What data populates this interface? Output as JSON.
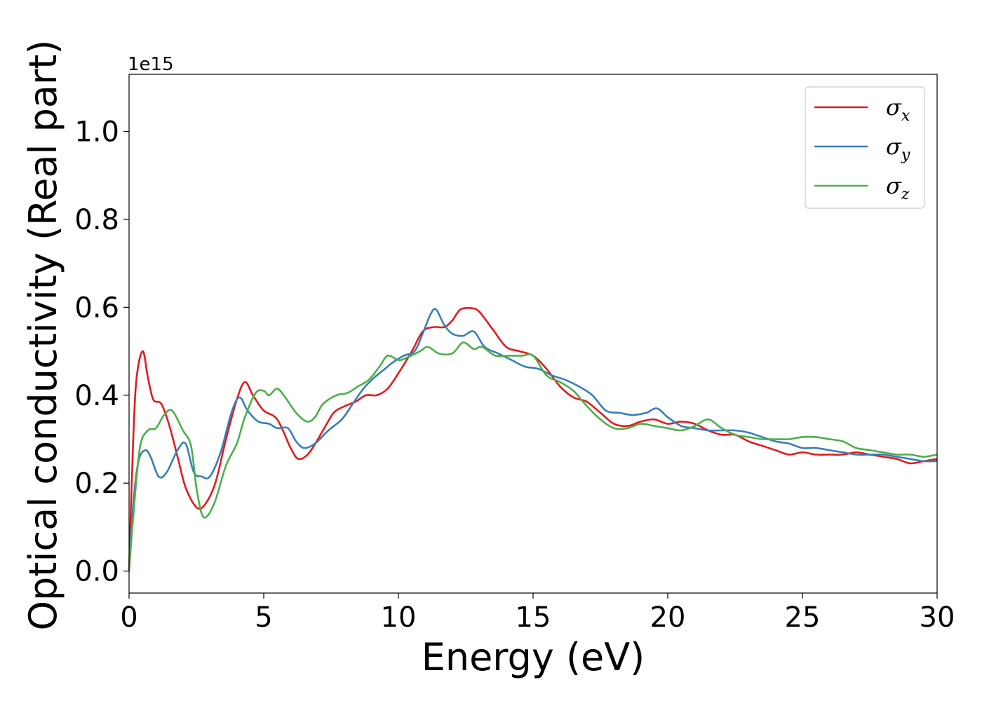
{
  "chart_data": {
    "type": "line",
    "title": "",
    "xlabel": "Energy (eV)",
    "ylabel": "Optical conductivity (Real part)",
    "y_offset_text": "1e15",
    "xlim": [
      0,
      30
    ],
    "ylim": [
      -0.05,
      1.13
    ],
    "y_scale_factor": 1000000000000000.0,
    "xticks": [
      0,
      5,
      10,
      15,
      20,
      25,
      30
    ],
    "xtick_labels": [
      "0",
      "5",
      "10",
      "15",
      "20",
      "25",
      "30"
    ],
    "yticks": [
      0.0,
      0.2,
      0.4,
      0.6,
      0.8,
      1.0
    ],
    "ytick_labels": [
      "0.0",
      "0.2",
      "0.4",
      "0.6",
      "0.8",
      "1.0"
    ],
    "grid": false,
    "legend_position": "top-right",
    "series": [
      {
        "name": "σx",
        "symbol": "σ",
        "subscript": "x",
        "color": "#e41a1c",
        "points": [
          [
            0,
            0
          ],
          [
            0.1,
            0.2
          ],
          [
            0.25,
            0.42
          ],
          [
            0.5,
            0.5
          ],
          [
            0.7,
            0.44
          ],
          [
            0.9,
            0.39
          ],
          [
            1.2,
            0.38
          ],
          [
            1.5,
            0.33
          ],
          [
            1.8,
            0.26
          ],
          [
            2.1,
            0.19
          ],
          [
            2.5,
            0.145
          ],
          [
            2.8,
            0.15
          ],
          [
            3.2,
            0.2
          ],
          [
            3.6,
            0.3
          ],
          [
            4.0,
            0.39
          ],
          [
            4.3,
            0.43
          ],
          [
            4.6,
            0.4
          ],
          [
            5.0,
            0.365
          ],
          [
            5.5,
            0.345
          ],
          [
            6.0,
            0.28
          ],
          [
            6.3,
            0.255
          ],
          [
            6.7,
            0.27
          ],
          [
            7.2,
            0.32
          ],
          [
            7.6,
            0.36
          ],
          [
            8.0,
            0.375
          ],
          [
            8.4,
            0.385
          ],
          [
            8.8,
            0.4
          ],
          [
            9.2,
            0.4
          ],
          [
            9.6,
            0.415
          ],
          [
            10.0,
            0.45
          ],
          [
            10.5,
            0.5
          ],
          [
            10.9,
            0.545
          ],
          [
            11.3,
            0.555
          ],
          [
            11.7,
            0.555
          ],
          [
            12.0,
            0.57
          ],
          [
            12.3,
            0.595
          ],
          [
            12.7,
            0.598
          ],
          [
            13.0,
            0.59
          ],
          [
            13.5,
            0.55
          ],
          [
            14.0,
            0.51
          ],
          [
            14.5,
            0.5
          ],
          [
            15.0,
            0.49
          ],
          [
            15.5,
            0.46
          ],
          [
            16.0,
            0.42
          ],
          [
            16.5,
            0.395
          ],
          [
            17.0,
            0.385
          ],
          [
            17.5,
            0.36
          ],
          [
            18.0,
            0.335
          ],
          [
            18.5,
            0.33
          ],
          [
            19.0,
            0.34
          ],
          [
            19.5,
            0.345
          ],
          [
            20.0,
            0.335
          ],
          [
            20.5,
            0.34
          ],
          [
            21.0,
            0.335
          ],
          [
            21.5,
            0.32
          ],
          [
            22.0,
            0.31
          ],
          [
            22.5,
            0.31
          ],
          [
            23.0,
            0.295
          ],
          [
            23.5,
            0.285
          ],
          [
            24.0,
            0.275
          ],
          [
            24.5,
            0.265
          ],
          [
            25.0,
            0.27
          ],
          [
            25.5,
            0.265
          ],
          [
            26.0,
            0.265
          ],
          [
            26.5,
            0.265
          ],
          [
            27.0,
            0.27
          ],
          [
            27.5,
            0.265
          ],
          [
            28.0,
            0.26
          ],
          [
            28.5,
            0.255
          ],
          [
            29.0,
            0.245
          ],
          [
            29.5,
            0.25
          ],
          [
            30.0,
            0.255
          ]
        ]
      },
      {
        "name": "σy",
        "symbol": "σ",
        "subscript": "y",
        "color": "#377eb8",
        "points": [
          [
            0,
            0
          ],
          [
            0.15,
            0.15
          ],
          [
            0.35,
            0.25
          ],
          [
            0.6,
            0.275
          ],
          [
            0.8,
            0.26
          ],
          [
            1.1,
            0.215
          ],
          [
            1.4,
            0.225
          ],
          [
            1.8,
            0.275
          ],
          [
            2.1,
            0.29
          ],
          [
            2.4,
            0.225
          ],
          [
            2.7,
            0.215
          ],
          [
            3.0,
            0.215
          ],
          [
            3.4,
            0.27
          ],
          [
            3.8,
            0.36
          ],
          [
            4.1,
            0.395
          ],
          [
            4.4,
            0.365
          ],
          [
            4.8,
            0.34
          ],
          [
            5.2,
            0.335
          ],
          [
            5.5,
            0.325
          ],
          [
            5.9,
            0.325
          ],
          [
            6.2,
            0.295
          ],
          [
            6.5,
            0.28
          ],
          [
            6.9,
            0.29
          ],
          [
            7.4,
            0.32
          ],
          [
            7.9,
            0.345
          ],
          [
            8.3,
            0.38
          ],
          [
            8.7,
            0.415
          ],
          [
            9.1,
            0.44
          ],
          [
            9.5,
            0.46
          ],
          [
            9.8,
            0.475
          ],
          [
            10.2,
            0.49
          ],
          [
            10.6,
            0.5
          ],
          [
            10.9,
            0.54
          ],
          [
            11.2,
            0.585
          ],
          [
            11.4,
            0.595
          ],
          [
            11.7,
            0.56
          ],
          [
            12.0,
            0.54
          ],
          [
            12.4,
            0.535
          ],
          [
            12.8,
            0.545
          ],
          [
            13.2,
            0.51
          ],
          [
            13.7,
            0.495
          ],
          [
            14.2,
            0.48
          ],
          [
            14.7,
            0.465
          ],
          [
            15.2,
            0.46
          ],
          [
            15.7,
            0.445
          ],
          [
            16.2,
            0.435
          ],
          [
            16.7,
            0.42
          ],
          [
            17.2,
            0.4
          ],
          [
            17.7,
            0.365
          ],
          [
            18.2,
            0.36
          ],
          [
            18.7,
            0.355
          ],
          [
            19.2,
            0.36
          ],
          [
            19.6,
            0.37
          ],
          [
            20.0,
            0.35
          ],
          [
            20.5,
            0.33
          ],
          [
            21.0,
            0.325
          ],
          [
            21.5,
            0.32
          ],
          [
            22.0,
            0.32
          ],
          [
            22.5,
            0.32
          ],
          [
            23.0,
            0.315
          ],
          [
            23.5,
            0.305
          ],
          [
            24.0,
            0.295
          ],
          [
            24.5,
            0.29
          ],
          [
            25.0,
            0.28
          ],
          [
            25.5,
            0.28
          ],
          [
            26.0,
            0.275
          ],
          [
            26.5,
            0.27
          ],
          [
            27.0,
            0.265
          ],
          [
            27.5,
            0.265
          ],
          [
            28.0,
            0.265
          ],
          [
            28.5,
            0.26
          ],
          [
            29.0,
            0.255
          ],
          [
            29.5,
            0.25
          ],
          [
            30.0,
            0.25
          ]
        ]
      },
      {
        "name": "σz",
        "symbol": "σ",
        "subscript": "z",
        "color": "#4daf4a",
        "points": [
          [
            0,
            0
          ],
          [
            0.15,
            0.12
          ],
          [
            0.4,
            0.28
          ],
          [
            0.7,
            0.32
          ],
          [
            1.0,
            0.325
          ],
          [
            1.3,
            0.355
          ],
          [
            1.6,
            0.365
          ],
          [
            2.0,
            0.32
          ],
          [
            2.3,
            0.285
          ],
          [
            2.5,
            0.19
          ],
          [
            2.7,
            0.13
          ],
          [
            2.9,
            0.125
          ],
          [
            3.2,
            0.16
          ],
          [
            3.6,
            0.24
          ],
          [
            4.0,
            0.29
          ],
          [
            4.3,
            0.35
          ],
          [
            4.7,
            0.405
          ],
          [
            5.0,
            0.41
          ],
          [
            5.2,
            0.4
          ],
          [
            5.5,
            0.415
          ],
          [
            5.8,
            0.395
          ],
          [
            6.2,
            0.36
          ],
          [
            6.6,
            0.34
          ],
          [
            6.9,
            0.35
          ],
          [
            7.2,
            0.38
          ],
          [
            7.7,
            0.4
          ],
          [
            8.1,
            0.405
          ],
          [
            8.5,
            0.42
          ],
          [
            8.9,
            0.435
          ],
          [
            9.3,
            0.465
          ],
          [
            9.6,
            0.49
          ],
          [
            10.0,
            0.48
          ],
          [
            10.3,
            0.485
          ],
          [
            10.8,
            0.5
          ],
          [
            11.1,
            0.51
          ],
          [
            11.5,
            0.495
          ],
          [
            12.0,
            0.495
          ],
          [
            12.4,
            0.52
          ],
          [
            12.8,
            0.505
          ],
          [
            13.1,
            0.51
          ],
          [
            13.6,
            0.49
          ],
          [
            14.1,
            0.49
          ],
          [
            14.6,
            0.49
          ],
          [
            15.0,
            0.49
          ],
          [
            15.5,
            0.445
          ],
          [
            16.0,
            0.43
          ],
          [
            16.5,
            0.41
          ],
          [
            17.0,
            0.375
          ],
          [
            17.5,
            0.345
          ],
          [
            18.0,
            0.325
          ],
          [
            18.5,
            0.325
          ],
          [
            19.0,
            0.335
          ],
          [
            19.5,
            0.33
          ],
          [
            20.0,
            0.325
          ],
          [
            20.5,
            0.32
          ],
          [
            21.0,
            0.33
          ],
          [
            21.5,
            0.345
          ],
          [
            22.0,
            0.325
          ],
          [
            22.5,
            0.31
          ],
          [
            23.0,
            0.305
          ],
          [
            23.5,
            0.3
          ],
          [
            24.0,
            0.3
          ],
          [
            24.5,
            0.3
          ],
          [
            25.0,
            0.305
          ],
          [
            25.5,
            0.305
          ],
          [
            26.0,
            0.3
          ],
          [
            26.5,
            0.295
          ],
          [
            27.0,
            0.28
          ],
          [
            27.5,
            0.275
          ],
          [
            28.0,
            0.27
          ],
          [
            28.5,
            0.265
          ],
          [
            29.0,
            0.265
          ],
          [
            29.5,
            0.26
          ],
          [
            30.0,
            0.265
          ]
        ]
      }
    ]
  }
}
